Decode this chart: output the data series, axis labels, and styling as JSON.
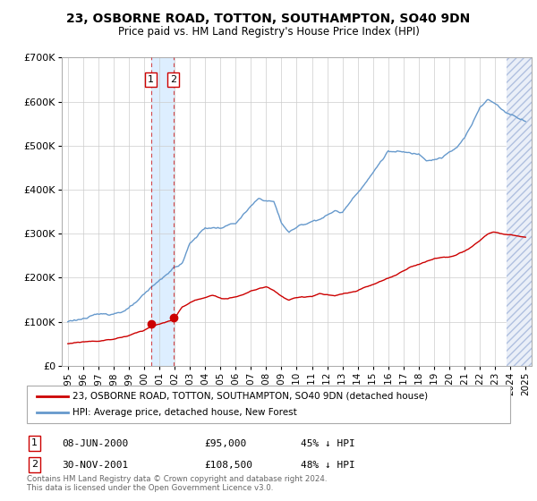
{
  "title": "23, OSBORNE ROAD, TOTTON, SOUTHAMPTON, SO40 9DN",
  "subtitle": "Price paid vs. HM Land Registry's House Price Index (HPI)",
  "legend_line1": "23, OSBORNE ROAD, TOTTON, SOUTHAMPTON, SO40 9DN (detached house)",
  "legend_line2": "HPI: Average price, detached house, New Forest",
  "footer": "Contains HM Land Registry data © Crown copyright and database right 2024.\nThis data is licensed under the Open Government Licence v3.0.",
  "transaction1_label": "1",
  "transaction1_date": "08-JUN-2000",
  "transaction1_price": "£95,000",
  "transaction1_hpi": "45% ↓ HPI",
  "transaction1_x": 2000.44,
  "transaction1_y": 95000,
  "transaction2_label": "2",
  "transaction2_date": "30-NOV-2001",
  "transaction2_price": "£108,500",
  "transaction2_hpi": "48% ↓ HPI",
  "transaction2_x": 2001.92,
  "transaction2_y": 108500,
  "red_color": "#cc0000",
  "blue_color": "#6699cc",
  "shaded_region_color": "#ddeeff",
  "hatch_color": "#aabbdd",
  "ylim": [
    0,
    700000
  ],
  "xlim_start": 1994.6,
  "xlim_end": 2025.4,
  "hatch_start": 2023.75,
  "title_fontsize": 10,
  "subtitle_fontsize": 8.5,
  "tick_fontsize": 7.5,
  "ytick_fontsize": 8
}
